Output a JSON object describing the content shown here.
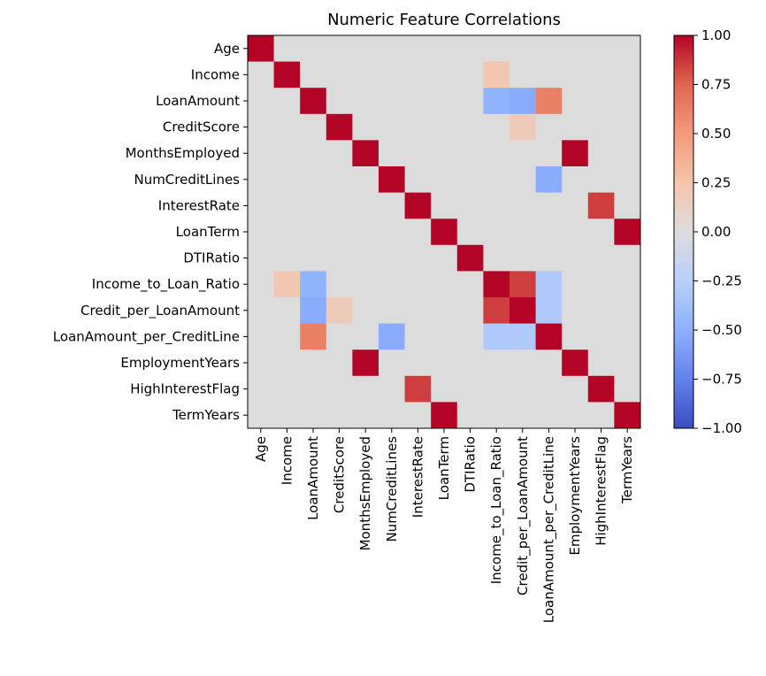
{
  "chart_data": {
    "type": "heatmap",
    "title": "Numeric Feature Correlations",
    "xlabel": "",
    "ylabel": "",
    "features": [
      "Age",
      "Income",
      "LoanAmount",
      "CreditScore",
      "MonthsEmployed",
      "NumCreditLines",
      "InterestRate",
      "LoanTerm",
      "DTIRatio",
      "Income_to_Loan_Ratio",
      "Credit_per_LoanAmount",
      "LoanAmount_per_CreditLine",
      "EmploymentYears",
      "HighInterestFlag",
      "TermYears"
    ],
    "matrix": [
      [
        1,
        0,
        0,
        0,
        0,
        0,
        0,
        0,
        0,
        0,
        0,
        0,
        0,
        0,
        0
      ],
      [
        0,
        1,
        0,
        0,
        0,
        0,
        0,
        0,
        0,
        0.22,
        0,
        0,
        0,
        0,
        0
      ],
      [
        0,
        0,
        1,
        0,
        0,
        0,
        0,
        0,
        0,
        -0.48,
        -0.52,
        0.62,
        0,
        0,
        0
      ],
      [
        0,
        0,
        0,
        1,
        0,
        0,
        0,
        0,
        0,
        0,
        0.18,
        0,
        0,
        0,
        0
      ],
      [
        0,
        0,
        0,
        0,
        1,
        0,
        0,
        0,
        0,
        0,
        0,
        0,
        1,
        0,
        0
      ],
      [
        0,
        0,
        0,
        0,
        0,
        1,
        0,
        0,
        0,
        0,
        0,
        -0.52,
        0,
        0,
        0
      ],
      [
        0,
        0,
        0,
        0,
        0,
        0,
        1,
        0,
        0,
        0,
        0,
        0,
        0,
        0.85,
        0
      ],
      [
        0,
        0,
        0,
        0,
        0,
        0,
        0,
        1,
        0,
        0,
        0,
        0,
        0,
        0,
        1
      ],
      [
        0,
        0,
        0,
        0,
        0,
        0,
        0,
        0,
        1,
        0,
        0,
        0,
        0,
        0,
        0
      ],
      [
        0,
        0.22,
        -0.48,
        0,
        0,
        0,
        0,
        0,
        0,
        1,
        0.85,
        -0.3,
        0,
        0,
        0
      ],
      [
        0,
        0,
        -0.52,
        0.18,
        0,
        0,
        0,
        0,
        0,
        0.85,
        1,
        -0.3,
        0,
        0,
        0
      ],
      [
        0,
        0,
        0.62,
        0,
        0,
        -0.52,
        0,
        0,
        0,
        -0.3,
        -0.3,
        1,
        0,
        0,
        0
      ],
      [
        0,
        0,
        0,
        0,
        1,
        0,
        0,
        0,
        0,
        0,
        0,
        0,
        1,
        0,
        0
      ],
      [
        0,
        0,
        0,
        0,
        0,
        0,
        0.85,
        0,
        0,
        0,
        0,
        0,
        0,
        1,
        0
      ],
      [
        0,
        0,
        0,
        0,
        0,
        0,
        0,
        1,
        0,
        0,
        0,
        0,
        0,
        0,
        1
      ]
    ],
    "vmin": -1,
    "vmax": 1,
    "colormap": "coolwarm",
    "colorbar_ticks": [
      "1.00",
      "0.75",
      "0.50",
      "0.25",
      "0.00",
      "−0.25",
      "−0.50",
      "−0.75",
      "−1.00"
    ],
    "grid": false
  }
}
